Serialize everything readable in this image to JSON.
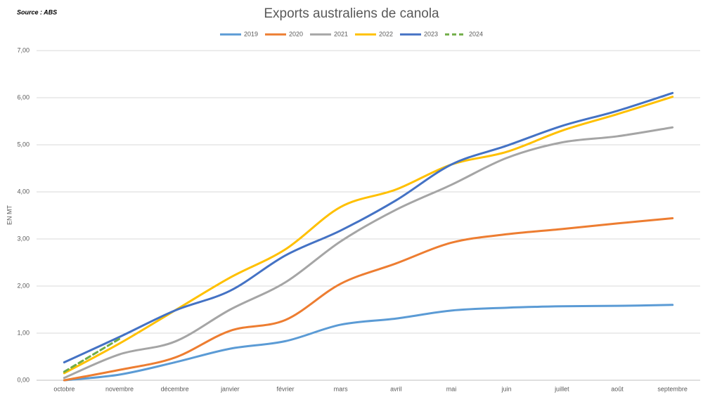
{
  "chart_data": {
    "type": "line",
    "title": "Exports australiens de canola",
    "source": "Source : ABS",
    "y_label": "EN MT",
    "categories": [
      "octobre",
      "novembre",
      "décembre",
      "janvier",
      "février",
      "mars",
      "avril",
      "mai",
      "juin",
      "juillet",
      "août",
      "septembre"
    ],
    "series": [
      {
        "name": "2019",
        "color": "#5b9bd5",
        "values": [
          0.0,
          0.12,
          0.38,
          0.67,
          0.83,
          1.18,
          1.31,
          1.48,
          1.54,
          1.57,
          1.58,
          1.6
        ]
      },
      {
        "name": "2020",
        "color": "#ed7d31",
        "values": [
          0.0,
          0.22,
          0.48,
          1.05,
          1.28,
          2.05,
          2.48,
          2.92,
          3.1,
          3.21,
          3.33,
          3.44
        ]
      },
      {
        "name": "2021",
        "color": "#a5a5a5",
        "values": [
          0.05,
          0.55,
          0.82,
          1.5,
          2.08,
          2.95,
          3.62,
          4.15,
          4.72,
          5.05,
          5.18,
          5.37
        ]
      },
      {
        "name": "2022",
        "color": "#ffc000",
        "values": [
          0.15,
          0.78,
          1.48,
          2.18,
          2.78,
          3.68,
          4.05,
          4.58,
          4.85,
          5.3,
          5.65,
          6.02
        ]
      },
      {
        "name": "2023",
        "color": "#4472c4",
        "values": [
          0.38,
          0.92,
          1.48,
          1.9,
          2.65,
          3.18,
          3.82,
          4.58,
          4.98,
          5.4,
          5.72,
          6.1
        ]
      },
      {
        "name": "2024",
        "color": "#70ad47",
        "dashed": true,
        "values": [
          0.18,
          0.88,
          null,
          null,
          null,
          null,
          null,
          null,
          null,
          null,
          null,
          null
        ]
      }
    ],
    "ylim": [
      0,
      7
    ],
    "yticks": [
      {
        "value": 0,
        "label": "0,00"
      },
      {
        "value": 1,
        "label": "1,00"
      },
      {
        "value": 2,
        "label": "2,00"
      },
      {
        "value": 3,
        "label": "3,00"
      },
      {
        "value": 4,
        "label": "4,00"
      },
      {
        "value": 5,
        "label": "5,00"
      },
      {
        "value": 6,
        "label": "6,00"
      },
      {
        "value": 7,
        "label": "7,00"
      }
    ],
    "grid": true,
    "legend": "top"
  }
}
